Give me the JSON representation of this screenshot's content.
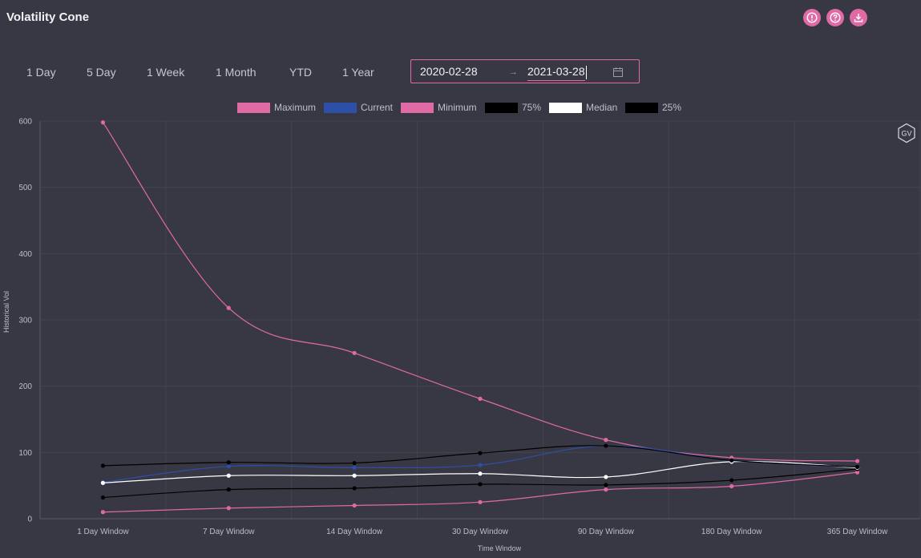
{
  "header": {
    "title": "Volatility Cone",
    "icons": [
      "info-icon",
      "help-icon",
      "download-icon"
    ]
  },
  "range_buttons": [
    "1 Day",
    "5 Day",
    "1 Week",
    "1 Month",
    "YTD",
    "1 Year"
  ],
  "date_range": {
    "start": "2020-02-28",
    "separator": "→",
    "end": "2021-03-28"
  },
  "watermark": "GV",
  "colors": {
    "accent": "#e06aa6",
    "background": "#383844",
    "current": "#2d4fa8"
  },
  "chart_data": {
    "type": "line",
    "xlabel": "Time Window",
    "ylabel": "Historical Vol",
    "categories": [
      "1 Day Window",
      "7 Day Window",
      "14 Day Window",
      "30 Day Window",
      "90 Day Window",
      "180 Day Window",
      "365 Day Window"
    ],
    "ylim": [
      0,
      600
    ],
    "yticks": [
      0,
      100,
      200,
      300,
      400,
      500,
      600
    ],
    "grid": true,
    "legend": "top",
    "series": [
      {
        "name": "Maximum",
        "color": "#e06aa6",
        "values": [
          598,
          318,
          250,
          181,
          119,
          92,
          87
        ]
      },
      {
        "name": "Current",
        "color": "#2d4fa8",
        "values": [
          55,
          79,
          77,
          81,
          110,
          88,
          77
        ]
      },
      {
        "name": "Minimum",
        "color": "#e06aa6",
        "values": [
          10,
          16,
          20,
          25,
          44,
          49,
          70
        ]
      },
      {
        "name": "75%",
        "color": "#000000",
        "values": [
          80,
          85,
          84,
          99,
          110,
          88,
          78
        ]
      },
      {
        "name": "Median",
        "color": "#ffffff",
        "values": [
          54,
          65,
          65,
          68,
          63,
          86,
          77
        ]
      },
      {
        "name": "25%",
        "color": "#000000",
        "values": [
          32,
          44,
          46,
          52,
          51,
          58,
          75
        ]
      }
    ]
  }
}
